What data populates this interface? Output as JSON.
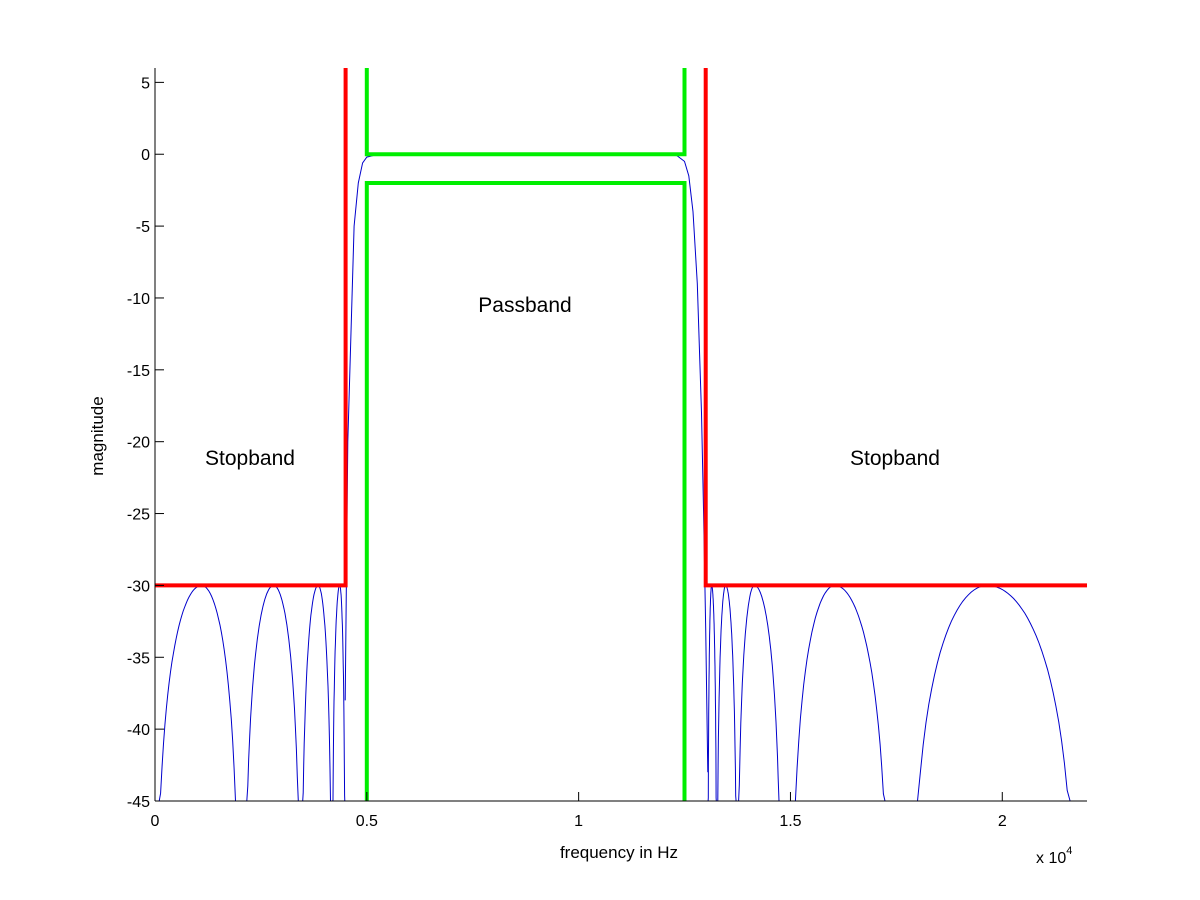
{
  "chart_data": {
    "type": "line",
    "xlabel": "frequency in Hz",
    "ylabel": "magnitude",
    "x_multiplier_label": "x 10",
    "x_multiplier_exponent": "4",
    "xlim": [
      0,
      2.2
    ],
    "ylim": [
      -45,
      6
    ],
    "x_ticks": [
      0,
      0.5,
      1,
      1.5,
      2
    ],
    "x_tick_labels": [
      "0",
      "0.5",
      "1",
      "1.5",
      "2"
    ],
    "y_ticks": [
      5,
      0,
      -5,
      -10,
      -15,
      -20,
      -25,
      -30,
      -35,
      -40,
      -45
    ],
    "y_tick_labels": [
      "5",
      "0",
      "-5",
      "-10",
      "-15",
      "-20",
      "-25",
      "-30",
      "-35",
      "-40",
      "-45"
    ],
    "grid": false,
    "annotations": [
      {
        "text": "Stopband",
        "x": 0.23,
        "y": -21.3
      },
      {
        "text": "Passband",
        "x": 0.88,
        "y": -10.5
      },
      {
        "text": "Stopband",
        "x": 1.76,
        "y": -21.3
      }
    ],
    "stopband_limits": {
      "color": "#ff0000",
      "lines": [
        {
          "x": [
            0,
            0.45,
            0.45
          ],
          "y": [
            -30,
            -30,
            6
          ]
        },
        {
          "x": [
            1.3,
            1.3,
            2.2
          ],
          "y": [
            6,
            -30,
            -30
          ]
        }
      ]
    },
    "passband_limits": {
      "color": "#00ee00",
      "lines": [
        {
          "x": [
            0.5,
            0.5,
            1.25,
            1.25
          ],
          "y": [
            6,
            0,
            0,
            6
          ]
        },
        {
          "x": [
            0.5,
            0.5,
            1.25,
            1.25
          ],
          "y": [
            -45,
            -2,
            -2,
            -45
          ]
        }
      ]
    },
    "response": {
      "color": "#0000cc",
      "lobes": [
        {
          "start": 0.0,
          "peak": 0.11,
          "end": 0.2,
          "peak_db": -30
        },
        {
          "start": 0.21,
          "peak": 0.28,
          "end": 0.345,
          "peak_db": -30
        },
        {
          "start": 0.345,
          "peak": 0.385,
          "end": 0.418,
          "peak_db": -30
        },
        {
          "start": 0.418,
          "peak": 0.436,
          "end": 0.449,
          "peak_db": -30
        },
        {
          "start": 1.305,
          "peak": 1.314,
          "end": 1.326,
          "peak_db": -30
        },
        {
          "start": 1.326,
          "peak": 1.347,
          "end": 1.374,
          "peak_db": -30
        },
        {
          "start": 1.374,
          "peak": 1.415,
          "end": 1.48,
          "peak_db": -30
        },
        {
          "start": 1.5,
          "peak": 1.605,
          "end": 1.735,
          "peak_db": -30
        },
        {
          "start": 1.78,
          "peak": 1.965,
          "end": 2.18,
          "peak_db": -30
        }
      ],
      "transition_low": {
        "x": [
          0.449,
          0.455,
          0.465,
          0.47,
          0.48,
          0.49,
          0.5,
          0.52,
          0.55,
          0.6
        ],
        "y": [
          -38,
          -20,
          -10,
          -5,
          -2,
          -0.6,
          -0.2,
          -0.05,
          0,
          0
        ]
      },
      "passband": {
        "x": [
          0.6,
          1.2
        ],
        "y": [
          0,
          0
        ]
      },
      "transition_high": {
        "x": [
          1.2,
          1.23,
          1.25,
          1.26,
          1.27,
          1.28,
          1.29,
          1.295,
          1.3,
          1.305
        ],
        "y": [
          0,
          -0.05,
          -0.5,
          -1.5,
          -4,
          -9,
          -18,
          -25,
          -33,
          -43
        ]
      }
    }
  }
}
